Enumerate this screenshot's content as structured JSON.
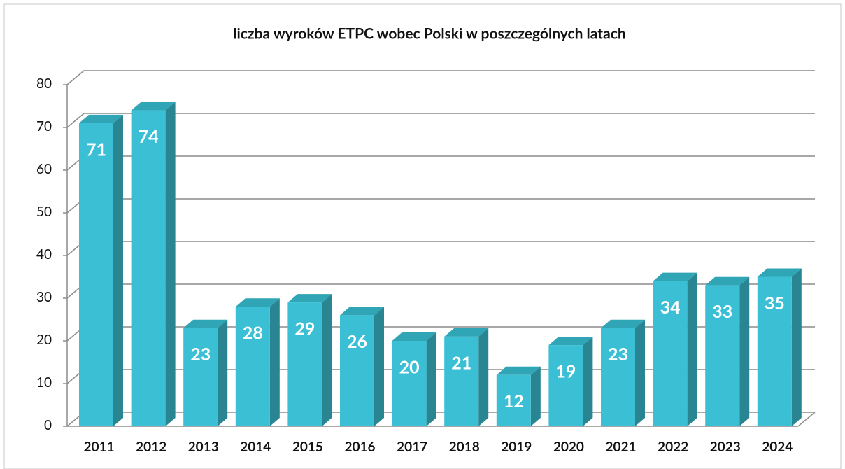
{
  "chart_data": {
    "type": "bar3d",
    "title": "liczba wyroków ETPC wobec Polski w poszczególnych latach",
    "categories": [
      "2011",
      "2012",
      "2013",
      "2014",
      "2015",
      "2016",
      "2017",
      "2018",
      "2019",
      "2020",
      "2021",
      "2022",
      "2023",
      "2024"
    ],
    "values": [
      71,
      74,
      23,
      28,
      29,
      26,
      20,
      21,
      12,
      19,
      23,
      34,
      33,
      35
    ],
    "color": "#3bbfd4",
    "ylim": [
      0,
      80
    ],
    "yticks": [
      0,
      10,
      20,
      30,
      40,
      50,
      60,
      70,
      80
    ],
    "grid": true
  }
}
